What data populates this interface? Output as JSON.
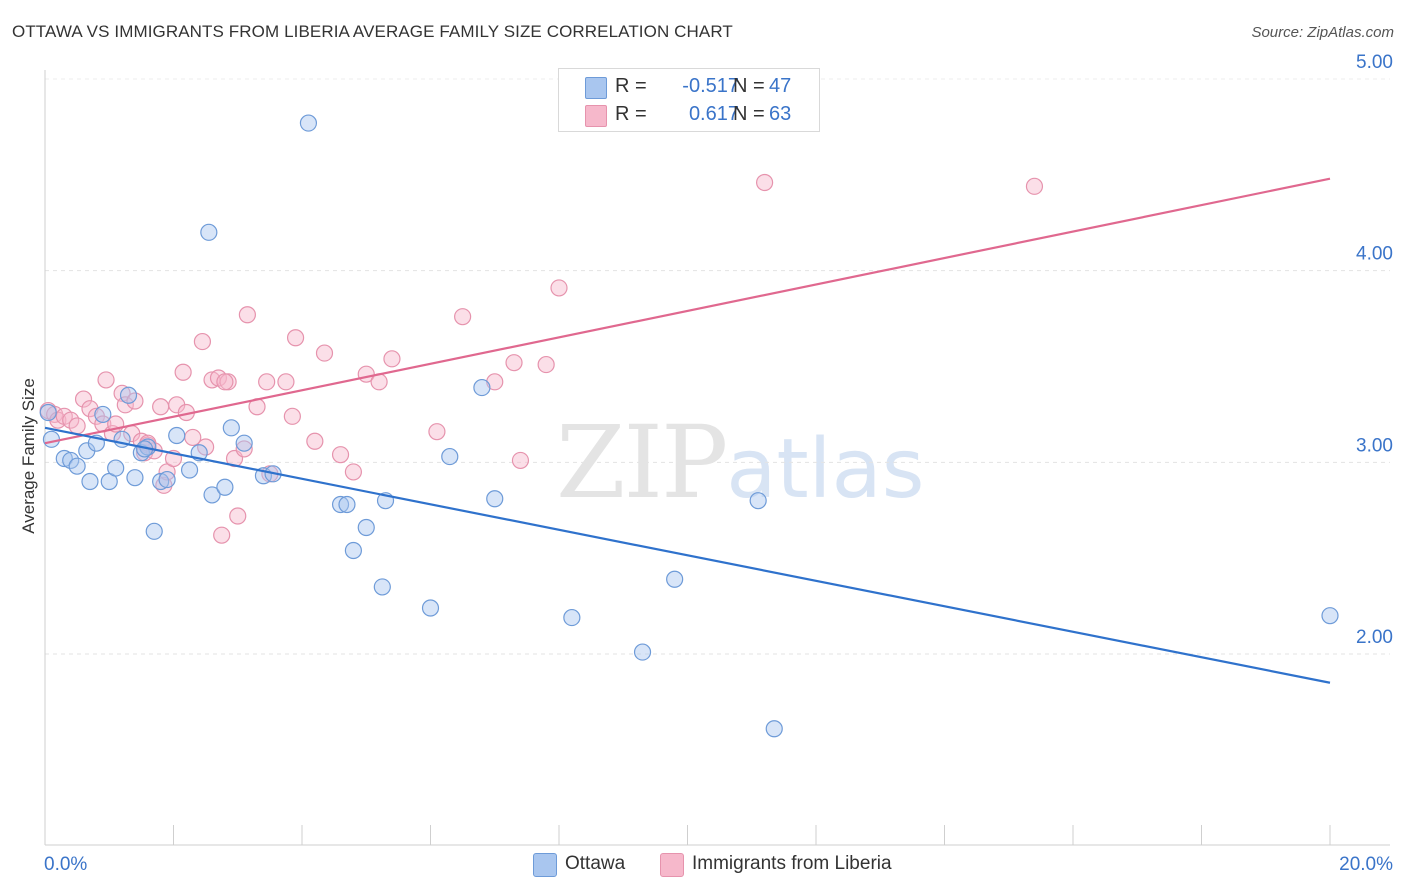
{
  "header": {
    "title": "OTTAWA VS IMMIGRANTS FROM LIBERIA AVERAGE FAMILY SIZE CORRELATION CHART",
    "source": "Source: ZipAtlas.com"
  },
  "watermark": {
    "zip": "ZIP",
    "atlas": "atlas"
  },
  "legend": {
    "rows": [
      {
        "r_label": "R =",
        "r_value": "-0.517",
        "n_label": "N =",
        "n_value": "47",
        "color": "#a9c6ef"
      },
      {
        "r_label": "R =",
        "r_value": "0.617",
        "n_label": "N =",
        "n_value": "63",
        "color": "#f6b8cb"
      }
    ]
  },
  "bottom_legend": {
    "ottawa": "Ottawa",
    "liberia": "Immigrants from Liberia"
  },
  "chart_data": {
    "type": "scatter",
    "ylabel": "Average Family Size",
    "xlabel": "",
    "x_tick_labels": [
      "0.0%",
      "20.0%"
    ],
    "y_tick_labels": [
      "2.00",
      "3.00",
      "4.00",
      "5.00"
    ],
    "xlim": [
      0,
      20.9
    ],
    "ylim": [
      1.0,
      5.1
    ],
    "grid": true,
    "legend_position": "top-center",
    "colors": {
      "ottawa_fill": "#a9c6ef",
      "ottawa_stroke": "#6e9bd8",
      "ottawa_line": "#2f72cc",
      "liberia_fill": "#f6b8cb",
      "liberia_stroke": "#e693ad",
      "liberia_line": "#e0688f",
      "tick_label": "#3a74c9"
    },
    "series": [
      {
        "name": "Ottawa",
        "trend": {
          "x": [
            0.0,
            20.0
          ],
          "y": [
            3.18,
            1.85
          ]
        },
        "points": [
          [
            0.1,
            3.12
          ],
          [
            0.3,
            3.02
          ],
          [
            0.4,
            3.01
          ],
          [
            0.5,
            2.98
          ],
          [
            0.65,
            3.06
          ],
          [
            0.7,
            2.9
          ],
          [
            0.8,
            3.1
          ],
          [
            0.9,
            3.25
          ],
          [
            1.0,
            2.9
          ],
          [
            1.1,
            2.97
          ],
          [
            1.2,
            3.12
          ],
          [
            1.3,
            3.35
          ],
          [
            1.4,
            2.92
          ],
          [
            1.5,
            3.05
          ],
          [
            1.6,
            3.08
          ],
          [
            1.7,
            2.64
          ],
          [
            1.8,
            2.9
          ],
          [
            1.9,
            2.91
          ],
          [
            2.05,
            3.14
          ],
          [
            2.25,
            2.96
          ],
          [
            2.4,
            3.05
          ],
          [
            2.55,
            4.2
          ],
          [
            2.6,
            2.83
          ],
          [
            2.8,
            2.87
          ],
          [
            2.9,
            3.18
          ],
          [
            3.1,
            3.1
          ],
          [
            3.4,
            2.93
          ],
          [
            3.55,
            2.94
          ],
          [
            4.1,
            4.77
          ],
          [
            4.6,
            2.78
          ],
          [
            4.7,
            2.78
          ],
          [
            4.8,
            2.54
          ],
          [
            5.0,
            2.66
          ],
          [
            5.25,
            2.35
          ],
          [
            5.3,
            2.8
          ],
          [
            6.0,
            2.24
          ],
          [
            6.3,
            3.03
          ],
          [
            6.8,
            3.39
          ],
          [
            7.0,
            2.81
          ],
          [
            8.2,
            2.19
          ],
          [
            9.3,
            2.01
          ],
          [
            9.8,
            2.39
          ],
          [
            11.1,
            2.8
          ],
          [
            11.35,
            1.61
          ],
          [
            20.0,
            2.2
          ],
          [
            0.05,
            3.26
          ],
          [
            1.55,
            3.07
          ]
        ]
      },
      {
        "name": "Immigrants from Liberia",
        "trend": {
          "x": [
            0.0,
            20.0
          ],
          "y": [
            3.1,
            4.48
          ]
        },
        "points": [
          [
            0.05,
            3.27
          ],
          [
            0.15,
            3.25
          ],
          [
            0.2,
            3.22
          ],
          [
            0.3,
            3.24
          ],
          [
            0.4,
            3.22
          ],
          [
            0.5,
            3.19
          ],
          [
            0.6,
            3.33
          ],
          [
            0.7,
            3.28
          ],
          [
            0.8,
            3.24
          ],
          [
            0.9,
            3.2
          ],
          [
            0.95,
            3.43
          ],
          [
            1.05,
            3.15
          ],
          [
            1.1,
            3.2
          ],
          [
            1.2,
            3.36
          ],
          [
            1.25,
            3.3
          ],
          [
            1.35,
            3.15
          ],
          [
            1.4,
            3.32
          ],
          [
            1.5,
            3.11
          ],
          [
            1.55,
            3.05
          ],
          [
            1.6,
            3.09
          ],
          [
            1.7,
            3.06
          ],
          [
            1.8,
            3.29
          ],
          [
            1.85,
            2.88
          ],
          [
            1.9,
            2.95
          ],
          [
            2.0,
            3.02
          ],
          [
            2.05,
            3.3
          ],
          [
            2.15,
            3.47
          ],
          [
            2.2,
            3.26
          ],
          [
            2.3,
            3.13
          ],
          [
            2.45,
            3.63
          ],
          [
            2.5,
            3.08
          ],
          [
            2.6,
            3.43
          ],
          [
            2.7,
            3.44
          ],
          [
            2.75,
            2.62
          ],
          [
            2.85,
            3.42
          ],
          [
            2.95,
            3.02
          ],
          [
            3.0,
            2.72
          ],
          [
            3.1,
            3.07
          ],
          [
            3.15,
            3.77
          ],
          [
            3.3,
            3.29
          ],
          [
            3.45,
            3.42
          ],
          [
            3.5,
            2.94
          ],
          [
            3.75,
            3.42
          ],
          [
            3.85,
            3.24
          ],
          [
            3.9,
            3.65
          ],
          [
            4.2,
            3.11
          ],
          [
            4.35,
            3.57
          ],
          [
            4.6,
            3.04
          ],
          [
            4.8,
            2.95
          ],
          [
            5.0,
            3.46
          ],
          [
            5.2,
            3.42
          ],
          [
            5.4,
            3.54
          ],
          [
            6.1,
            3.16
          ],
          [
            6.5,
            3.76
          ],
          [
            7.0,
            3.42
          ],
          [
            7.3,
            3.52
          ],
          [
            7.4,
            3.01
          ],
          [
            7.8,
            3.51
          ],
          [
            8.0,
            3.91
          ],
          [
            11.2,
            4.46
          ],
          [
            15.4,
            4.44
          ],
          [
            1.6,
            3.1
          ],
          [
            2.8,
            3.42
          ]
        ]
      }
    ]
  }
}
